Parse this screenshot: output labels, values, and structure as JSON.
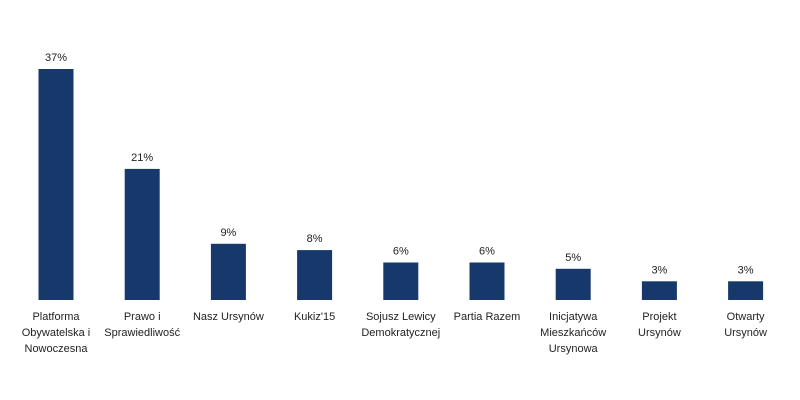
{
  "chart_data": {
    "type": "bar",
    "title": "",
    "xlabel": "",
    "ylabel": "",
    "ylim": [
      0,
      37
    ],
    "grid": false,
    "legend": "none",
    "bar_color": "#17386b",
    "categories": [
      [
        "Platforma",
        "Obywatelska i",
        "Nowoczesna"
      ],
      [
        "Prawo i",
        "Sprawiedliwość"
      ],
      [
        "Nasz Ursynów"
      ],
      [
        "Kukiz'15"
      ],
      [
        "Sojusz Lewicy",
        "Demokratycznej"
      ],
      [
        "Partia Razem"
      ],
      [
        "Inicjatywa",
        "Mieszkańców",
        "Ursynowa"
      ],
      [
        "Projekt",
        "Ursynów"
      ],
      [
        "Otwarty",
        "Ursynów"
      ]
    ],
    "values": [
      37,
      21,
      9,
      8,
      6,
      6,
      5,
      3,
      3
    ],
    "value_labels": [
      "37%",
      "21%",
      "9%",
      "8%",
      "6%",
      "6%",
      "5%",
      "3%",
      "3%"
    ]
  }
}
